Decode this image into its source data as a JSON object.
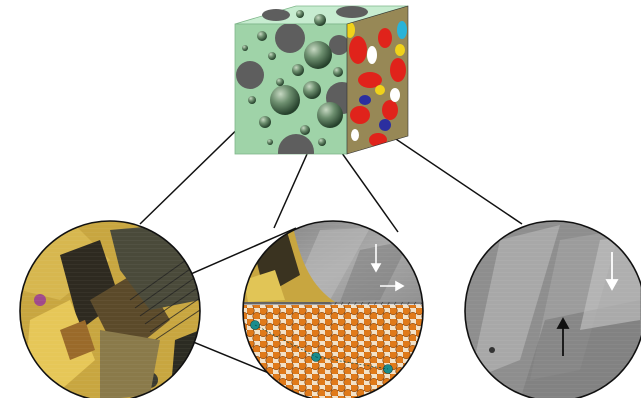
{
  "figure": {
    "top_element": "cube-composite",
    "panels": [
      {
        "id": "left",
        "content": "micrograph-colored"
      },
      {
        "id": "middle",
        "content": "micrograph-and-lattice"
      },
      {
        "id": "right",
        "content": "micrograph-grayscale"
      }
    ]
  },
  "colors": {
    "cube_front": "#9fd3a8",
    "cube_top": "#c7ecd0",
    "cube_side_dark": "#2b2fa0",
    "sphere": "#4a6a4e",
    "hole": "#5e5e5e",
    "lattice_atom": "#e07a1a",
    "lattice_special": "#1a8c8c",
    "lattice_bg": "#f3e2c8",
    "micro_gray": "#9a9a9a",
    "colored_micro_base": "#c8a640",
    "line": "#111111"
  },
  "icons": {
    "arrow_down": "down-arrow-icon",
    "arrow_up": "up-arrow-icon",
    "arrow_right": "right-arrow-icon"
  }
}
